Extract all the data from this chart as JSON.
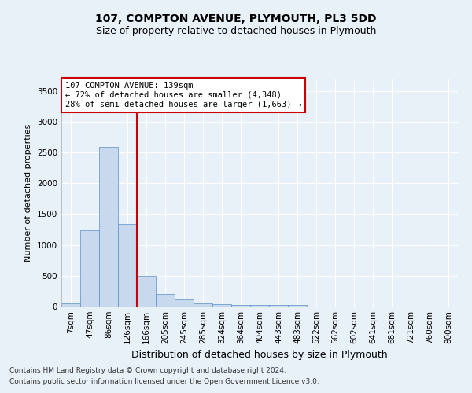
{
  "title": "107, COMPTON AVENUE, PLYMOUTH, PL3 5DD",
  "subtitle": "Size of property relative to detached houses in Plymouth",
  "xlabel": "Distribution of detached houses by size in Plymouth",
  "ylabel": "Number of detached properties",
  "footnote1": "Contains HM Land Registry data © Crown copyright and database right 2024.",
  "footnote2": "Contains public sector information licensed under the Open Government Licence v3.0.",
  "categories": [
    "7sqm",
    "47sqm",
    "86sqm",
    "126sqm",
    "166sqm",
    "205sqm",
    "245sqm",
    "285sqm",
    "324sqm",
    "364sqm",
    "404sqm",
    "443sqm",
    "483sqm",
    "522sqm",
    "562sqm",
    "602sqm",
    "641sqm",
    "681sqm",
    "721sqm",
    "760sqm",
    "800sqm"
  ],
  "values": [
    55,
    1240,
    2590,
    1340,
    500,
    200,
    115,
    55,
    35,
    20,
    20,
    20,
    20,
    0,
    0,
    0,
    0,
    0,
    0,
    0,
    0
  ],
  "bar_color": "#c8d9ed",
  "bar_edge_color": "#5b8fc9",
  "vline_position": 3.5,
  "vline_color": "#cc0000",
  "annotation_text": "107 COMPTON AVENUE: 139sqm\n← 72% of detached houses are smaller (4,348)\n28% of semi-detached houses are larger (1,663) →",
  "annotation_box_color": "#ffffff",
  "annotation_box_edge": "#cc0000",
  "ylim": [
    0,
    3700
  ],
  "yticks": [
    0,
    500,
    1000,
    1500,
    2000,
    2500,
    3000,
    3500
  ],
  "background_color": "#e8f0f8",
  "grid_color": "#ffffff",
  "title_fontsize": 10,
  "subtitle_fontsize": 9,
  "xlabel_fontsize": 9,
  "ylabel_fontsize": 8,
  "tick_fontsize": 7.5,
  "footnote_fontsize": 6.5
}
